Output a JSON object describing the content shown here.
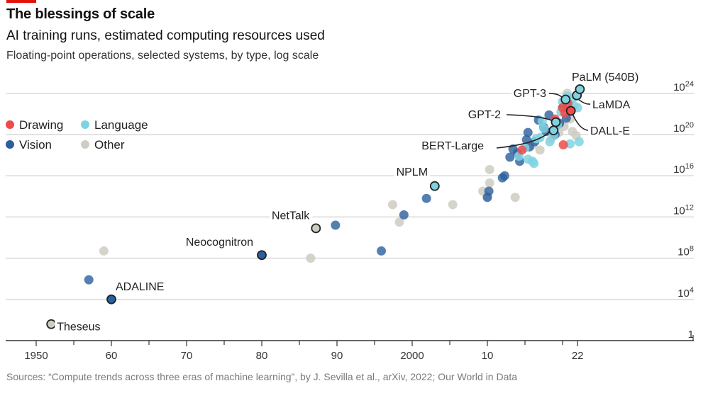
{
  "header": {
    "title": "The blessings of scale",
    "subtitle": "AI training runs, estimated computing resources used",
    "description": "Floating-point operations, selected systems, by type, log scale"
  },
  "source": "Sources: “Compute trends across three eras of machine learning”, by J. Sevilla et al., arXiv, 2022; Our World in Data",
  "colors": {
    "Drawing": "#f04a4a",
    "Language": "#7fd3e0",
    "Vision": "#2b5f9e",
    "Other": "#cfcdc1",
    "brand": "#e3120b"
  },
  "chart_data": {
    "type": "scatter",
    "title": "The blessings of scale",
    "subtitle": "AI training runs, estimated computing resources used",
    "xlabel": "",
    "ylabel": "Floating-point operations (log scale)",
    "x_scale": "linear",
    "y_scale": "log10",
    "xlim": [
      1949,
      2041
    ],
    "ylim_log10": [
      0,
      25
    ],
    "x_ticks": [
      {
        "value": 1950,
        "label": "1950"
      },
      {
        "value": 1960,
        "label": "60"
      },
      {
        "value": 1970,
        "label": "70"
      },
      {
        "value": 1980,
        "label": "80"
      },
      {
        "value": 1990,
        "label": "90"
      },
      {
        "value": 2000,
        "label": "2000"
      },
      {
        "value": 2010,
        "label": "10"
      },
      {
        "value": 2022,
        "label": "22"
      }
    ],
    "x_minor_ticks": [
      1955,
      1965,
      1975,
      1985,
      1995,
      2005,
      2015,
      2020
    ],
    "y_ticks": [
      {
        "log10": 24,
        "base": "10",
        "exp": "24"
      },
      {
        "log10": 20,
        "base": "10",
        "exp": "20"
      },
      {
        "log10": 16,
        "base": "10",
        "exp": "16"
      },
      {
        "log10": 12,
        "base": "10",
        "exp": "12"
      },
      {
        "log10": 8,
        "base": "10",
        "exp": "8"
      },
      {
        "log10": 4,
        "base": "10",
        "exp": "4"
      },
      {
        "log10": 0,
        "base": "1",
        "exp": ""
      }
    ],
    "grid": true,
    "legend": {
      "placement": "top-left",
      "entries": [
        "Drawing",
        "Language",
        "Vision",
        "Other"
      ]
    },
    "series": [
      {
        "name": "Drawing",
        "points": [
          [
            2014.6,
            18.5
          ],
          [
            2019.0,
            21.5
          ],
          [
            2020.0,
            22.6
          ],
          [
            2020.3,
            22.1
          ],
          [
            2020.7,
            23.0
          ],
          [
            2021.1,
            22.3
          ],
          [
            2020.1,
            19.0
          ]
        ]
      },
      {
        "name": "Language",
        "points": [
          [
            2003.0,
            15.0
          ],
          [
            2014.2,
            17.9
          ],
          [
            2015.0,
            18.7
          ],
          [
            2016.0,
            17.4
          ],
          [
            2016.2,
            17.2
          ],
          [
            2016.5,
            19.6
          ],
          [
            2017.0,
            19.7
          ],
          [
            2017.3,
            21.3
          ],
          [
            2017.5,
            20.6
          ],
          [
            2018.3,
            19.3
          ],
          [
            2018.8,
            19.9
          ],
          [
            2019.3,
            20.9
          ],
          [
            2019.8,
            22.2
          ],
          [
            2020.0,
            23.2
          ],
          [
            2020.6,
            23.7
          ],
          [
            2020.8,
            23.0
          ],
          [
            2021.3,
            23.5
          ],
          [
            2021.5,
            22.8
          ],
          [
            2022.0,
            22.6
          ],
          [
            2022.2,
            19.3
          ],
          [
            2021.0,
            19.1
          ],
          [
            2015.4,
            17.6
          ]
        ]
      },
      {
        "name": "Vision",
        "points": [
          [
            1957.0,
            5.9
          ],
          [
            1989.8,
            11.2
          ],
          [
            1995.9,
            8.7
          ],
          [
            1998.9,
            12.2
          ],
          [
            2001.9,
            13.8
          ],
          [
            2010.0,
            13.9
          ],
          [
            2010.2,
            14.5
          ],
          [
            2012.0,
            15.8
          ],
          [
            2012.3,
            16.0
          ],
          [
            2013.0,
            17.8
          ],
          [
            2013.4,
            18.6
          ],
          [
            2014.0,
            18.2
          ],
          [
            2014.3,
            17.4
          ],
          [
            2015.2,
            19.5
          ],
          [
            2015.4,
            20.2
          ],
          [
            2015.6,
            18.8
          ],
          [
            2016.3,
            19.3
          ],
          [
            2016.8,
            21.4
          ],
          [
            2017.5,
            20.7
          ],
          [
            2017.8,
            20.3
          ],
          [
            2018.2,
            21.9
          ],
          [
            2019.0,
            20.0
          ],
          [
            2019.6,
            21.1
          ],
          [
            2020.5,
            21.6
          ],
          [
            2020.0,
            22.6
          ]
        ]
      },
      {
        "name": "Other",
        "points": [
          [
            1959.0,
            8.7
          ],
          [
            1986.5,
            8.0
          ],
          [
            1997.4,
            13.2
          ],
          [
            1998.3,
            11.5
          ],
          [
            2005.4,
            13.2
          ],
          [
            2009.4,
            14.5
          ],
          [
            2010.0,
            14.0
          ],
          [
            2010.3,
            15.3
          ],
          [
            2010.3,
            16.6
          ],
          [
            2013.7,
            13.9
          ],
          [
            2016.0,
            19.0
          ],
          [
            2017.0,
            18.5
          ],
          [
            2018.5,
            19.6
          ],
          [
            2019.5,
            20.2
          ],
          [
            2020.2,
            20.8
          ],
          [
            2021.0,
            21.5
          ],
          [
            2021.3,
            20.3
          ],
          [
            2021.8,
            19.9
          ],
          [
            2020.6,
            24.0
          ]
        ]
      }
    ],
    "annotations": [
      {
        "label": "Theseus",
        "type": "Other",
        "x": 1952.0,
        "y_log10": 1.6
      },
      {
        "label": "ADALINE",
        "type": "Vision",
        "x": 1960.0,
        "y_log10": 4.0
      },
      {
        "label": "Neocognitron",
        "type": "Vision",
        "x": 1980.0,
        "y_log10": 8.3
      },
      {
        "label": "NetTalk",
        "type": "Other",
        "x": 1987.2,
        "y_log10": 10.9
      },
      {
        "label": "NPLM",
        "type": "Language",
        "x": 2003.0,
        "y_log10": 15.0
      },
      {
        "label": "BERT-Large",
        "type": "Language",
        "x": 2018.8,
        "y_log10": 20.4
      },
      {
        "label": "GPT-2",
        "type": "Language",
        "x": 2019.1,
        "y_log10": 21.2
      },
      {
        "label": "GPT-3",
        "type": "Language",
        "x": 2020.4,
        "y_log10": 23.4
      },
      {
        "label": "DALL-E",
        "type": "Drawing",
        "x": 2021.1,
        "y_log10": 22.3
      },
      {
        "label": "LaMDA",
        "type": "Language",
        "x": 2021.9,
        "y_log10": 23.8
      },
      {
        "label": "PaLM (540B)",
        "type": "Language",
        "x": 2022.3,
        "y_log10": 24.4
      }
    ]
  }
}
